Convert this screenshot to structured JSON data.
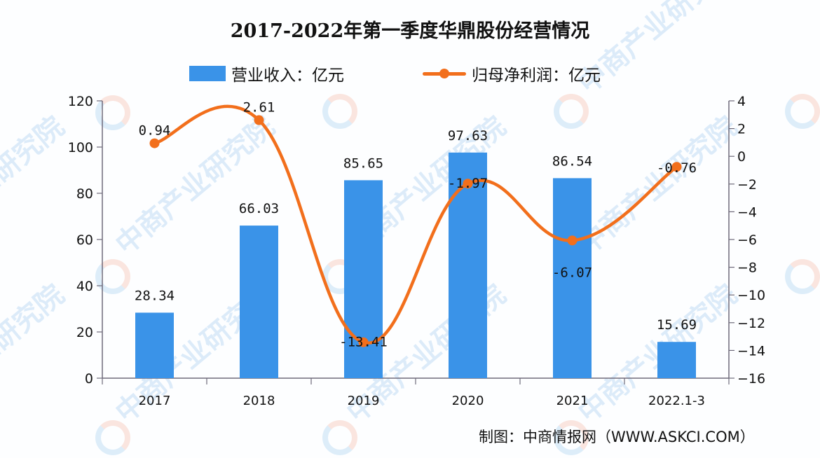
{
  "title": "2017-2022年第一季度华鼎股份经营情况",
  "legend": {
    "bar_label": "营业收入：亿元",
    "line_label": "归母净利润：亿元"
  },
  "source": "制图：中商情报网（WWW.ASKCI.COM）",
  "watermark": "中商产业研究院",
  "colors": {
    "bar": "#3a93e8",
    "line": "#f26f1c",
    "axis": "#6e6a7a",
    "text": "#111111"
  },
  "chart_data": {
    "type": "bar+line",
    "title": "2017-2022年第一季度华鼎股份经营情况",
    "categories": [
      "2017",
      "2018",
      "2019",
      "2020",
      "2021",
      "2022.1-3"
    ],
    "series": [
      {
        "name": "营业收入：亿元",
        "type": "bar",
        "axis": "left",
        "values": [
          28.34,
          66.03,
          85.65,
          97.63,
          86.54,
          15.69
        ]
      },
      {
        "name": "归母净利润：亿元",
        "type": "line",
        "axis": "right",
        "smooth": true,
        "values": [
          0.94,
          2.61,
          -13.41,
          -1.97,
          -6.07,
          -0.76
        ]
      }
    ],
    "left_axis": {
      "min": 0,
      "max": 120,
      "ticks": [
        0,
        20,
        40,
        60,
        80,
        100,
        120
      ]
    },
    "right_axis": {
      "min": -16,
      "max": 4,
      "ticks": [
        4,
        2,
        0,
        -2,
        -4,
        -6,
        -8,
        -10,
        -12,
        -14,
        -16
      ]
    },
    "xlabel": "",
    "ylabel": "",
    "grid": false,
    "legend_position": "top"
  }
}
